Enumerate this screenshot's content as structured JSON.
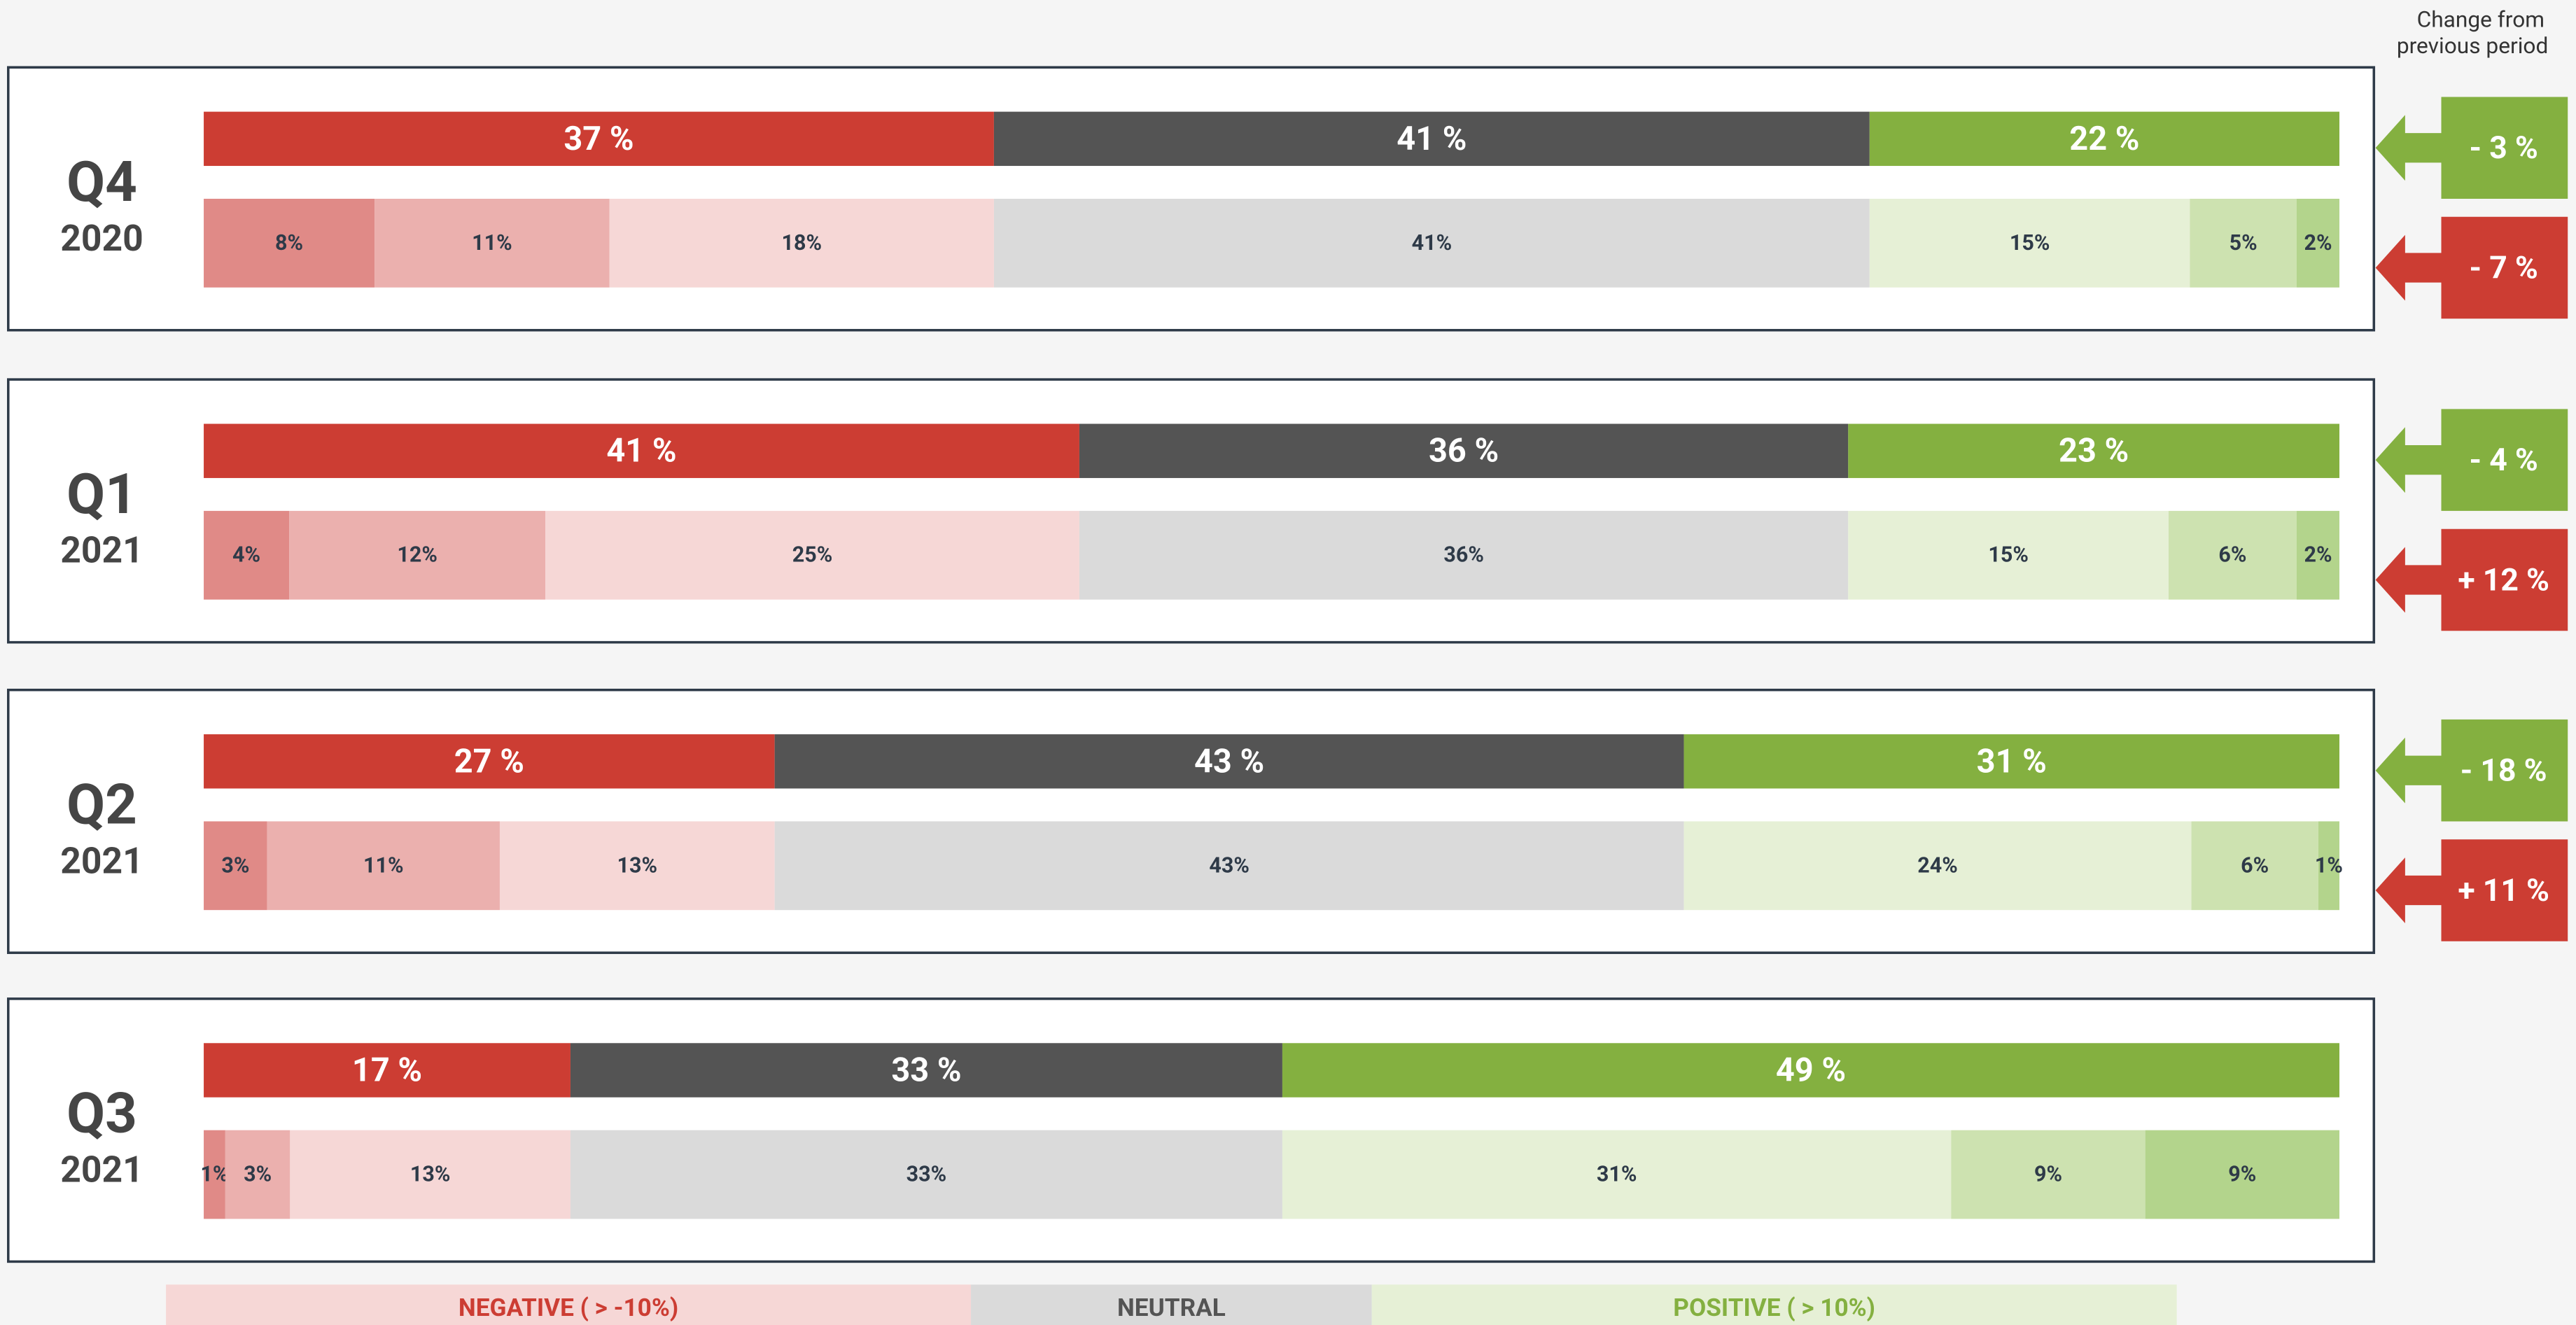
{
  "chart_data": {
    "type": "sentiment-bars",
    "header": [
      "Change from",
      "previous period"
    ],
    "summary_colors": [
      "#cc3d33",
      "#545454",
      "#84b040"
    ],
    "detail_colors": [
      "#e08a87",
      "#ebb0ae",
      "#f6d7d6",
      "#dadada",
      "#e6f0d6",
      "#cde2b0",
      "#b3d48c"
    ],
    "periods": [
      {
        "quarter": "Q4",
        "year": "2020",
        "summary": {
          "values": [
            37,
            41,
            22
          ],
          "value_labels": [
            "37 %",
            "41 %",
            "22 %"
          ]
        },
        "detail": {
          "values": [
            8,
            11,
            18,
            41,
            15,
            5,
            2
          ],
          "value_labels": [
            "8%",
            "11%",
            "18%",
            "41%",
            "15%",
            "5%",
            "2%"
          ]
        },
        "changes": [
          {
            "value": -3,
            "label": "- 3 %",
            "color": "#84b040"
          },
          {
            "value": -7,
            "label": "- 7 %",
            "color": "#cc3d33"
          }
        ]
      },
      {
        "quarter": "Q1",
        "year": "2021",
        "summary": {
          "values": [
            41,
            36,
            23
          ],
          "value_labels": [
            "41 %",
            "36 %",
            "23 %"
          ]
        },
        "detail": {
          "values": [
            4,
            12,
            25,
            36,
            15,
            6,
            2
          ],
          "value_labels": [
            "4%",
            "12%",
            "25%",
            "36%",
            "15%",
            "6%",
            "2%"
          ]
        },
        "changes": [
          {
            "value": -4,
            "label": "- 4 %",
            "color": "#84b040"
          },
          {
            "value": 12,
            "label": "+ 12 %",
            "color": "#cc3d33"
          }
        ]
      },
      {
        "quarter": "Q2",
        "year": "2021",
        "summary": {
          "values": [
            27,
            43,
            31
          ],
          "value_labels": [
            "27 %",
            "43 %",
            "31 %"
          ]
        },
        "detail": {
          "values": [
            3,
            11,
            13,
            43,
            24,
            6,
            1
          ],
          "value_labels": [
            "3%",
            "11%",
            "13%",
            "43%",
            "24%",
            "6%",
            "1%"
          ]
        },
        "changes": [
          {
            "value": -18,
            "label": "- 18 %",
            "color": "#84b040"
          },
          {
            "value": 11,
            "label": "+ 11 %",
            "color": "#cc3d33"
          }
        ]
      },
      {
        "quarter": "Q3",
        "year": "2021",
        "summary": {
          "values": [
            17,
            33,
            49
          ],
          "value_labels": [
            "17 %",
            "33 %",
            "49 %"
          ]
        },
        "detail": {
          "values": [
            1,
            3,
            13,
            33,
            31,
            9,
            9
          ],
          "value_labels": [
            "1%",
            "3%",
            "13%",
            "33%",
            "31%",
            "9%",
            "9%"
          ]
        },
        "changes": []
      }
    ],
    "legend": [
      {
        "label": "NEGATIVE ( > -10%)",
        "color": "#f6d7d6",
        "text_color": "#cc3d33"
      },
      {
        "label": "NEUTRAL",
        "color": "#dadada",
        "text_color": "#545454"
      },
      {
        "label": "POSITIVE ( > 10%)",
        "color": "#e6f0d6",
        "text_color": "#84b040"
      }
    ]
  }
}
